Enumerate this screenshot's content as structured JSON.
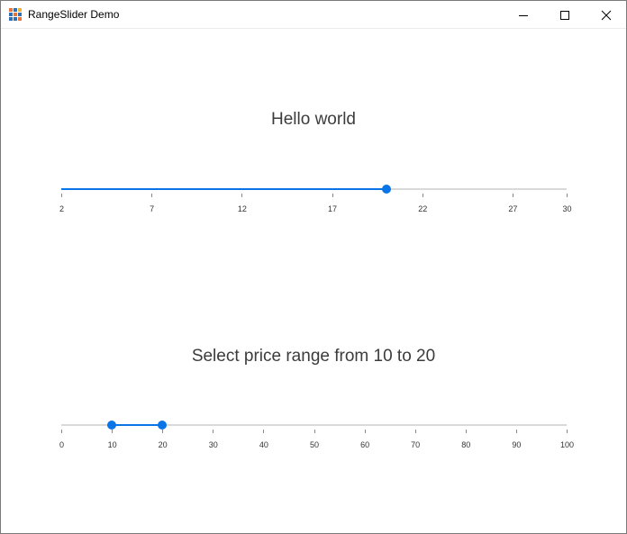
{
  "window": {
    "title": "RangeSlider Demo",
    "icon": "app-grid-icon",
    "controls": [
      "minimize-icon",
      "maximize-icon",
      "close-icon"
    ]
  },
  "colors": {
    "accent": "#0a75e6",
    "track": "#d9d9d9",
    "heading": "#3c3c3c"
  },
  "slider1": {
    "heading": "Hello world",
    "min": 2,
    "max": 30,
    "value": 20,
    "ticks": [
      "2",
      "7",
      "12",
      "17",
      "22",
      "27",
      "30"
    ]
  },
  "slider2": {
    "heading": "Select price range from 10 to 20",
    "min": 0,
    "max": 100,
    "lower": 10,
    "upper": 20,
    "ticks": [
      "0",
      "10",
      "20",
      "30",
      "40",
      "50",
      "60",
      "70",
      "80",
      "90",
      "100"
    ]
  }
}
